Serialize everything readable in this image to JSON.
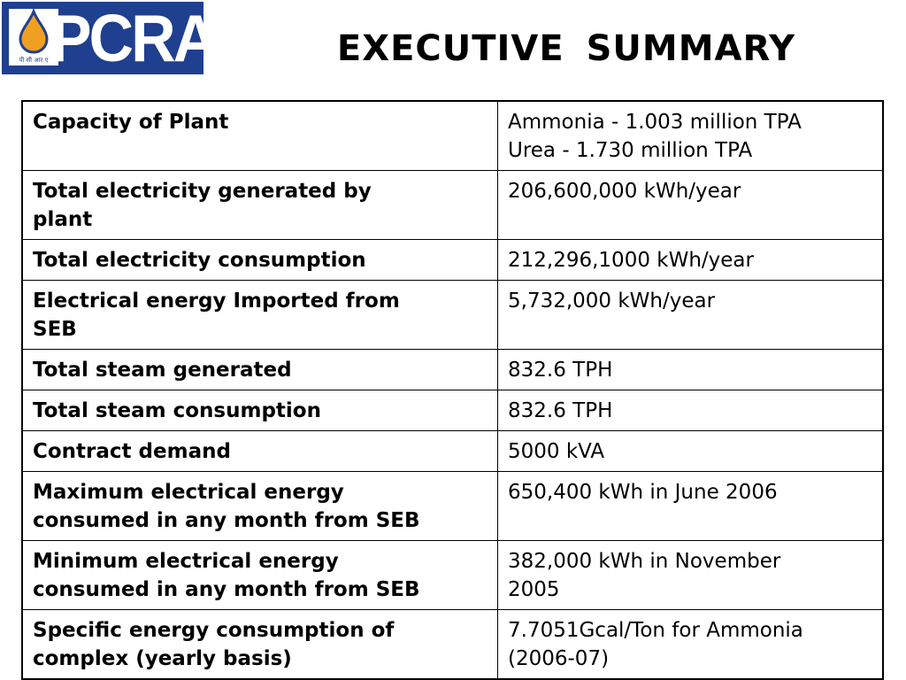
{
  "logo": {
    "text": "PCRA",
    "subtext": "पी सी आर ए"
  },
  "title": "EXECUTIVE  SUMMARY",
  "rows": [
    {
      "label": [
        "Capacity of Plant"
      ],
      "value": [
        "Ammonia - 1.003 million TPA",
        "Urea - 1.730 million TPA"
      ]
    },
    {
      "label": [
        "Total electricity generated by",
        "plant"
      ],
      "value": [
        "206,600,000 kWh/year"
      ]
    },
    {
      "label": [
        "Total electricity consumption"
      ],
      "value": [
        "212,296,1000 kWh/year"
      ]
    },
    {
      "label": [
        "Electrical energy Imported from",
        "SEB"
      ],
      "value": [
        "5,732,000 kWh/year"
      ]
    },
    {
      "label": [
        "Total steam generated"
      ],
      "value": [
        "832.6 TPH"
      ]
    },
    {
      "label": [
        "Total steam consumption"
      ],
      "value": [
        "832.6 TPH"
      ]
    },
    {
      "label": [
        "Contract demand"
      ],
      "value": [
        "5000 kVA"
      ]
    },
    {
      "label": [
        "Maximum electrical energy",
        "consumed in any month from SEB"
      ],
      "value": [
        "650,400 kWh in June 2006"
      ]
    },
    {
      "label": [
        "Minimum electrical energy",
        "consumed in any month from SEB"
      ],
      "value": [
        "382,000 kWh in November",
        "2005"
      ]
    },
    {
      "label": [
        "Specific energy consumption of",
        "complex (yearly basis)"
      ],
      "value": [
        "7.7051Gcal/Ton for Ammonia",
        "(2006-07)"
      ]
    }
  ],
  "colors": {
    "brand_blue": "#1f3f8f",
    "drop_orange": "#f0a020"
  },
  "icons": {
    "logo_emblem": "oil-drop-icon"
  }
}
